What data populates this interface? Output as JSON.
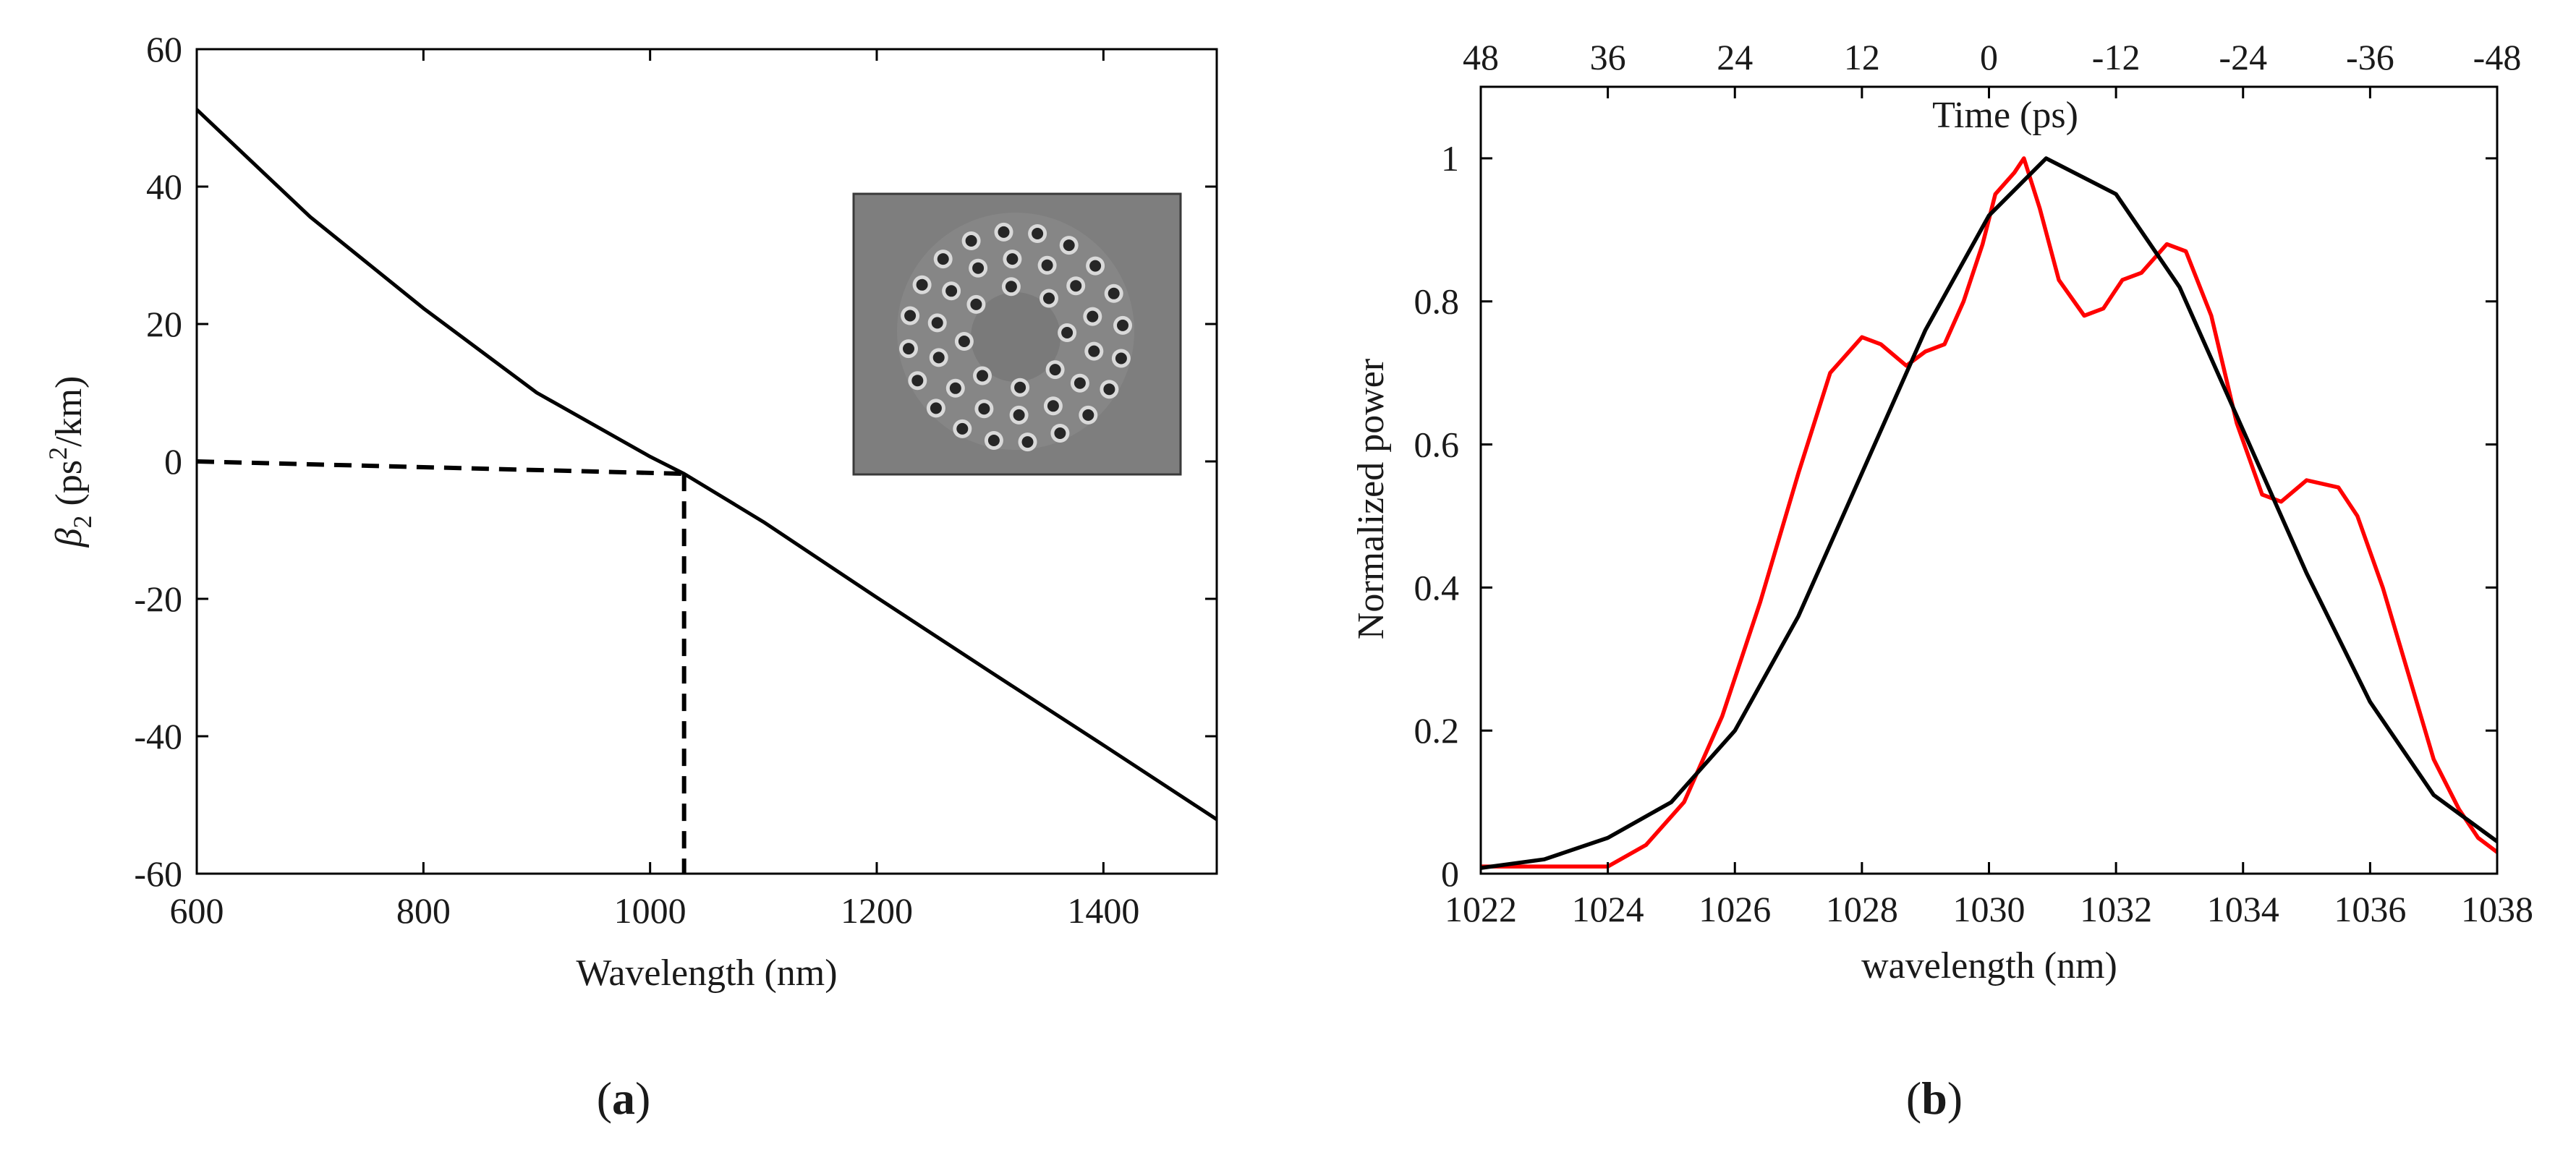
{
  "chart_data": [
    {
      "type": "line",
      "panel_label": "a",
      "xlabel": "Wavelength (nm)",
      "ylabel_symbol": "β",
      "ylabel_subscript": "2",
      "ylabel_unit_pre": " (ps",
      "ylabel_unit_sup": "2",
      "ylabel_unit_post": "/km)",
      "xlim": [
        600,
        1500
      ],
      "ylim": [
        -60,
        60
      ],
      "xticks": [
        "600",
        "800",
        "1000",
        "1200",
        "1400"
      ],
      "yticks": [
        "60",
        "40",
        "20",
        "0",
        "-20",
        "-40",
        "-60"
      ],
      "grid": false,
      "series": [
        {
          "color": "#000000",
          "style": "solid",
          "x": [
            600,
            700,
            800,
            900,
            1000,
            1030,
            1100,
            1200,
            1300,
            1400,
            1500
          ],
          "y": [
            51.2,
            35.6,
            22.3,
            10.0,
            0.7,
            -1.8,
            -8.8,
            -19.8,
            -30.6,
            -41.3,
            -52.1
          ]
        }
      ],
      "annotations": [
        {
          "type": "dashed-guide",
          "color": "#000000",
          "x": 1030,
          "y": -1.8,
          "description": "zero-dispersion wavelength marker"
        },
        {
          "type": "inset-image",
          "description": "photonic crystal fiber cross-section micrograph"
        }
      ]
    },
    {
      "type": "line",
      "panel_label": "b",
      "xlabel": "wavelength (nm)",
      "ylabel": "Normalized power",
      "top_axis_label": "Time (ps)",
      "xlim": [
        1022,
        1038
      ],
      "ylim": [
        0,
        1.1
      ],
      "xticks": [
        "1022",
        "1024",
        "1026",
        "1028",
        "1030",
        "1032",
        "1034",
        "1036",
        "1038"
      ],
      "top_ticks": [
        "48",
        "36",
        "24",
        "12",
        "0",
        "-12",
        "-24",
        "-36",
        "-48"
      ],
      "yticks": [
        "0",
        "0.2",
        "0.4",
        "0.6",
        "0.8",
        "1"
      ],
      "grid": false,
      "series": [
        {
          "color": "#ff0000",
          "x": [
            1022,
            1023,
            1024,
            1024.6,
            1025.2,
            1025.8,
            1026.4,
            1027,
            1027.5,
            1028,
            1028.3,
            1028.7,
            1029,
            1029.3,
            1029.6,
            1029.9,
            1030.1,
            1030.4,
            1030.55,
            1030.8,
            1031.1,
            1031.5,
            1031.8,
            1032.1,
            1032.4,
            1032.8,
            1033.1,
            1033.5,
            1033.9,
            1034.3,
            1034.6,
            1035,
            1035.5,
            1035.8,
            1036.2,
            1036.6,
            1037,
            1037.4,
            1037.7,
            1038
          ],
          "y": [
            0.01,
            0.01,
            0.01,
            0.04,
            0.1,
            0.22,
            0.38,
            0.56,
            0.7,
            0.75,
            0.74,
            0.71,
            0.73,
            0.74,
            0.8,
            0.88,
            0.95,
            0.98,
            1.0,
            0.93,
            0.83,
            0.78,
            0.79,
            0.83,
            0.84,
            0.88,
            0.87,
            0.78,
            0.63,
            0.53,
            0.52,
            0.55,
            0.54,
            0.5,
            0.4,
            0.28,
            0.16,
            0.09,
            0.05,
            0.03
          ]
        },
        {
          "color": "#000000",
          "x": [
            1022,
            1023,
            1024,
            1025,
            1026,
            1027,
            1028,
            1029,
            1030,
            1030.9,
            1032,
            1033,
            1034,
            1035,
            1036,
            1037,
            1038
          ],
          "y": [
            0.008,
            0.02,
            0.05,
            0.1,
            0.2,
            0.36,
            0.56,
            0.76,
            0.92,
            1.0,
            0.95,
            0.82,
            0.62,
            0.42,
            0.24,
            0.11,
            0.045
          ]
        }
      ]
    }
  ]
}
